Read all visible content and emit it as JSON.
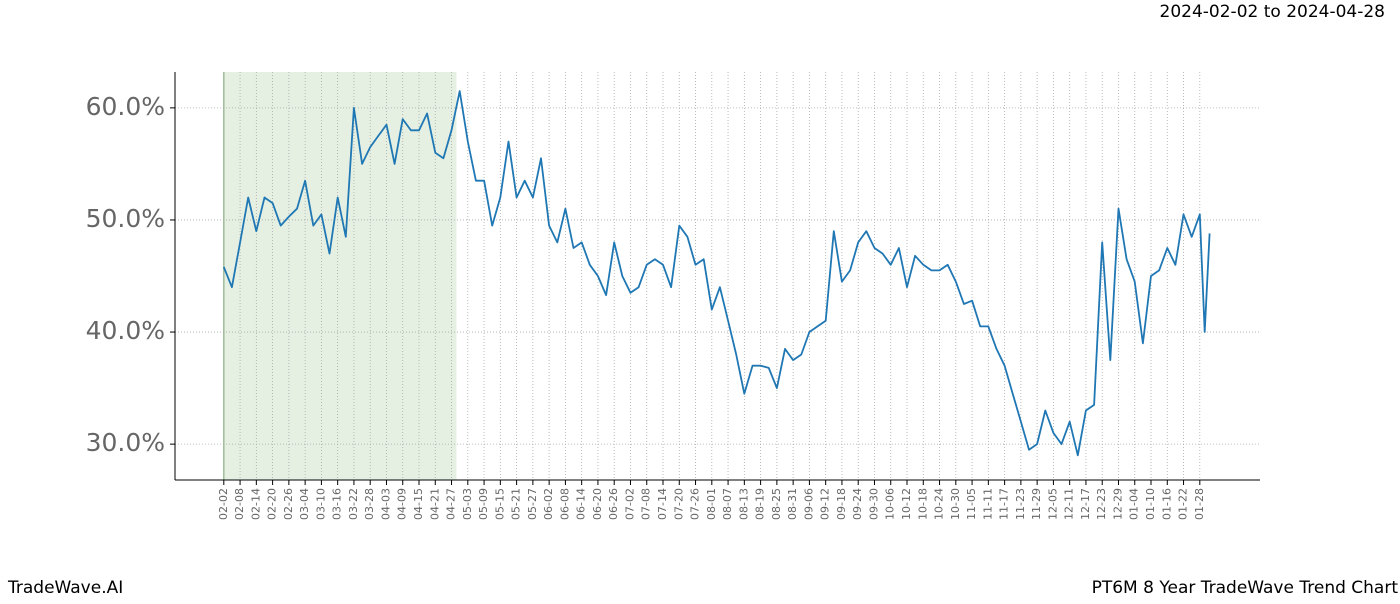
{
  "header": {
    "date_range": "2024-02-02 to 2024-04-28"
  },
  "footer": {
    "brand": "TradeWave.AI",
    "chart_name": "PT6M 8 Year TradeWave Trend Chart"
  },
  "chart_data": {
    "type": "line",
    "color": "#1f77b4",
    "grid": true,
    "highlight": {
      "xlim": [
        0,
        14.3
      ],
      "color": "#e5f0e3"
    },
    "xlim": [
      -3,
      63.7
    ],
    "ylim": [
      26.8,
      63.2
    ],
    "yticks": [
      {
        "value": 30,
        "label": "30.0%"
      },
      {
        "value": 40,
        "label": "40.0%"
      },
      {
        "value": 50,
        "label": "50.0%"
      },
      {
        "value": 60,
        "label": "60.0%"
      }
    ],
    "xticks": [
      {
        "value": 0,
        "label": "02-02"
      },
      {
        "value": 1,
        "label": "02-08"
      },
      {
        "value": 2,
        "label": "02-14"
      },
      {
        "value": 3,
        "label": "02-20"
      },
      {
        "value": 4,
        "label": "02-26"
      },
      {
        "value": 5,
        "label": "03-04"
      },
      {
        "value": 6,
        "label": "03-10"
      },
      {
        "value": 7,
        "label": "03-16"
      },
      {
        "value": 8,
        "label": "03-22"
      },
      {
        "value": 9,
        "label": "03-28"
      },
      {
        "value": 10,
        "label": "04-03"
      },
      {
        "value": 11,
        "label": "04-09"
      },
      {
        "value": 12,
        "label": "04-15"
      },
      {
        "value": 13,
        "label": "04-21"
      },
      {
        "value": 14,
        "label": "04-27"
      },
      {
        "value": 15,
        "label": "05-03"
      },
      {
        "value": 16,
        "label": "05-09"
      },
      {
        "value": 17,
        "label": "05-15"
      },
      {
        "value": 18,
        "label": "05-21"
      },
      {
        "value": 19,
        "label": "05-27"
      },
      {
        "value": 20,
        "label": "06-02"
      },
      {
        "value": 21,
        "label": "06-08"
      },
      {
        "value": 22,
        "label": "06-14"
      },
      {
        "value": 23,
        "label": "06-20"
      },
      {
        "value": 24,
        "label": "06-26"
      },
      {
        "value": 25,
        "label": "07-02"
      },
      {
        "value": 26,
        "label": "07-08"
      },
      {
        "value": 27,
        "label": "07-14"
      },
      {
        "value": 28,
        "label": "07-20"
      },
      {
        "value": 29,
        "label": "07-26"
      },
      {
        "value": 30,
        "label": "08-01"
      },
      {
        "value": 31,
        "label": "08-07"
      },
      {
        "value": 32,
        "label": "08-13"
      },
      {
        "value": 33,
        "label": "08-19"
      },
      {
        "value": 34,
        "label": "08-25"
      },
      {
        "value": 35,
        "label": "08-31"
      },
      {
        "value": 36,
        "label": "09-06"
      },
      {
        "value": 37,
        "label": "09-12"
      },
      {
        "value": 38,
        "label": "09-18"
      },
      {
        "value": 39,
        "label": "09-24"
      },
      {
        "value": 40,
        "label": "09-30"
      },
      {
        "value": 41,
        "label": "10-06"
      },
      {
        "value": 42,
        "label": "10-12"
      },
      {
        "value": 43,
        "label": "10-18"
      },
      {
        "value": 44,
        "label": "10-24"
      },
      {
        "value": 45,
        "label": "10-30"
      },
      {
        "value": 46,
        "label": "11-05"
      },
      {
        "value": 47,
        "label": "11-11"
      },
      {
        "value": 48,
        "label": "11-17"
      },
      {
        "value": 49,
        "label": "11-23"
      },
      {
        "value": 50,
        "label": "11-29"
      },
      {
        "value": 51,
        "label": "12-05"
      },
      {
        "value": 52,
        "label": "12-11"
      },
      {
        "value": 53,
        "label": "12-17"
      },
      {
        "value": 54,
        "label": "12-23"
      },
      {
        "value": 55,
        "label": "12-29"
      },
      {
        "value": 56,
        "label": "01-04"
      },
      {
        "value": 57,
        "label": "01-10"
      },
      {
        "value": 58,
        "label": "01-16"
      },
      {
        "value": 59,
        "label": "01-22"
      },
      {
        "value": 60,
        "label": "01-28"
      }
    ],
    "x": [
      0,
      0.5,
      1,
      1.5,
      2,
      2.5,
      3,
      3.5,
      4,
      4.5,
      5,
      5.5,
      6,
      6.5,
      7,
      7.5,
      8,
      8.5,
      9,
      9.5,
      10,
      10.5,
      11,
      11.5,
      12,
      12.5,
      13,
      13.5,
      14,
      14.5,
      15,
      15.5,
      16,
      16.5,
      17,
      17.5,
      18,
      18.5,
      19,
      19.5,
      20,
      20.5,
      21,
      21.5,
      22,
      22.5,
      23,
      23.5,
      24,
      24.5,
      25,
      25.5,
      26,
      26.5,
      27,
      27.5,
      28,
      28.5,
      29,
      29.5,
      30,
      30.5,
      31,
      31.5,
      32,
      32.5,
      33,
      33.5,
      34,
      34.5,
      35,
      35.5,
      36,
      36.5,
      37,
      37.5,
      38,
      38.5,
      39,
      39.5,
      40,
      40.5,
      41,
      41.5,
      42,
      42.5,
      43,
      43.5,
      44,
      44.5,
      45,
      45.5,
      46,
      46.5,
      47,
      47.5,
      48,
      48.5,
      49,
      49.5,
      50,
      50.5,
      51,
      51.5,
      52,
      52.5,
      53,
      53.5,
      54,
      54.5,
      55,
      55.5,
      56,
      56.5,
      57,
      57.5,
      58,
      58.5,
      59,
      59.5,
      60,
      60.3,
      60.6
    ],
    "values": [
      45.8,
      44,
      48,
      52,
      49,
      52,
      51.5,
      49.5,
      50.3,
      51,
      53.5,
      49.5,
      50.5,
      47,
      52,
      48.5,
      60,
      55,
      56.5,
      57.5,
      58.5,
      55,
      59,
      58,
      58,
      59.5,
      56,
      55.5,
      58,
      61.5,
      57,
      53.5,
      53.5,
      49.5,
      52,
      57,
      52,
      53.5,
      52,
      55.5,
      49.5,
      48,
      51,
      47.5,
      48,
      46,
      45,
      43.3,
      48,
      45,
      43.5,
      44,
      46,
      46.5,
      46,
      44,
      49.5,
      48.5,
      46,
      46.5,
      42,
      44,
      41,
      38,
      34.5,
      37,
      37,
      36.8,
      35,
      38.5,
      37.5,
      38,
      40,
      40.5,
      41,
      49,
      44.5,
      45.5,
      48,
      49,
      47.5,
      47,
      46,
      47.5,
      44,
      46.8,
      46,
      45.5,
      45.5,
      46,
      44.5,
      42.5,
      42.8,
      40.5,
      40.5,
      38.5,
      37,
      34.5,
      32,
      29.5,
      30,
      33,
      31,
      30,
      32,
      29,
      33,
      33.5,
      48,
      37.5,
      51,
      46.5,
      44.5,
      39,
      45,
      45.5,
      47.5,
      46,
      50.5,
      48.5,
      50.5,
      40,
      48.8
    ]
  }
}
